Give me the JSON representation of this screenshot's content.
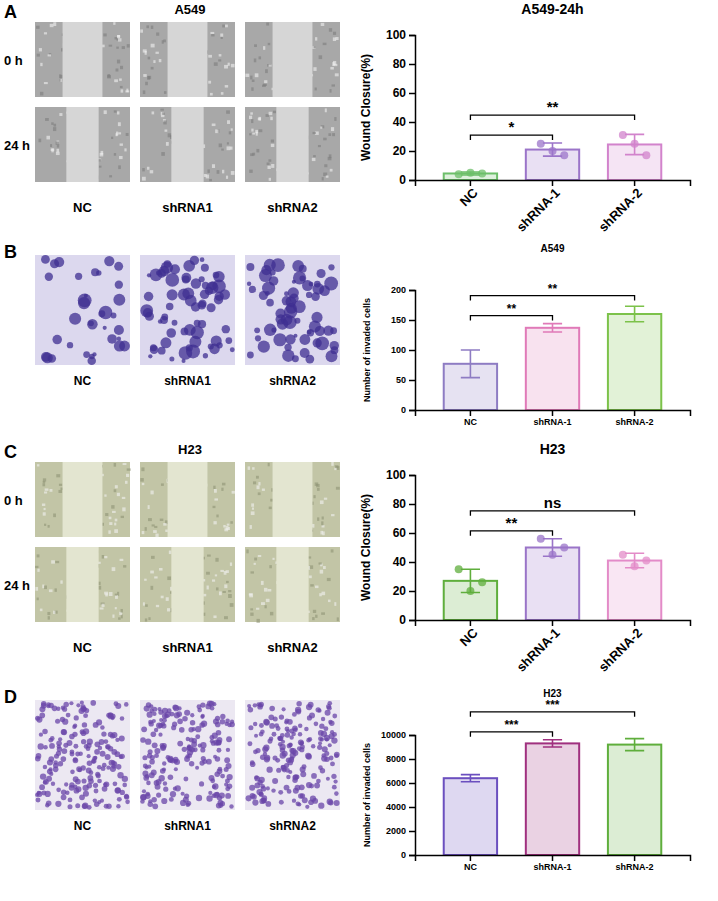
{
  "chart_data": [
    {
      "type": "bar",
      "title": "A549-24h",
      "y_label": "Wound Closure(%)",
      "categories": [
        "NC",
        "shRNA-1",
        "shRNA-2"
      ],
      "values": [
        4.5,
        21,
        24.5
      ],
      "errors": [
        1,
        4.5,
        7
      ],
      "points": [
        [
          4,
          5,
          4.5
        ],
        [
          25,
          20,
          17
        ],
        [
          31,
          25,
          17
        ]
      ],
      "colors": [
        "#6dbf6a",
        "#9b74c9",
        "#d283cc"
      ],
      "ylim": [
        0,
        100
      ],
      "yticks": [
        0,
        20,
        40,
        60,
        80,
        100
      ],
      "grid": false,
      "annotations": [
        {
          "text": "*",
          "between": [
            "NC",
            "shRNA-1"
          ]
        },
        {
          "text": "**",
          "between": [
            "NC",
            "shRNA-2"
          ]
        }
      ]
    },
    {
      "type": "bar",
      "title": "A549",
      "y_label": "Number of invaded cells",
      "categories": [
        "NC",
        "shRNA-1",
        "shRNA-2"
      ],
      "values": [
        77,
        137,
        160
      ],
      "errors": [
        23,
        7,
        13
      ],
      "colors": [
        "#8e7cc3",
        "#e07ab8",
        "#7cc24a"
      ],
      "ylim": [
        0,
        200
      ],
      "yticks": [
        0,
        50,
        100,
        150,
        200
      ],
      "grid": false,
      "annotations": [
        {
          "text": "**",
          "between": [
            "NC",
            "shRNA-1"
          ]
        },
        {
          "text": "**",
          "between": [
            "NC",
            "shRNA-2"
          ]
        }
      ]
    },
    {
      "type": "bar",
      "title": "H23",
      "y_label": "Wound Closure(%)",
      "categories": [
        "NC",
        "shRNA-1",
        "shRNA-2"
      ],
      "values": [
        27,
        50,
        41
      ],
      "errors": [
        8,
        6,
        5
      ],
      "points": [
        [
          35,
          20,
          26
        ],
        [
          56,
          45,
          50
        ],
        [
          45,
          37,
          41
        ]
      ],
      "colors": [
        "#5fae3c",
        "#9a74c8",
        "#e38bc8"
      ],
      "ylim": [
        0,
        100
      ],
      "yticks": [
        0,
        20,
        40,
        60,
        80,
        100
      ],
      "grid": false,
      "annotations": [
        {
          "text": "**",
          "between": [
            "NC",
            "shRNA-1"
          ]
        },
        {
          "text": "ns",
          "between": [
            "NC",
            "shRNA-2"
          ]
        }
      ]
    },
    {
      "type": "bar",
      "title": "H23",
      "y_label": "Number of invaded cells",
      "categories": [
        "NC",
        "shRNA-1",
        "shRNA-2"
      ],
      "values": [
        6400,
        9300,
        9200
      ],
      "errors": [
        300,
        300,
        500
      ],
      "colors": [
        "#6b4fbf",
        "#a0307f",
        "#5fae3c"
      ],
      "ylim": [
        0,
        10000
      ],
      "yticks": [
        0,
        2000,
        4000,
        6000,
        8000,
        10000
      ],
      "grid": false,
      "annotations": [
        {
          "text": "***",
          "between": [
            "NC",
            "shRNA-1"
          ]
        },
        {
          "text": "***",
          "between": [
            "NC",
            "shRNA-2"
          ]
        }
      ]
    }
  ],
  "panels": [
    {
      "letter": "A",
      "title": "A549",
      "row_labels": [
        "0 h",
        "24 h"
      ],
      "image_labels": [
        "NC",
        "shRNA1",
        "shRNA2"
      ]
    },
    {
      "letter": "B",
      "image_labels": [
        "NC",
        "shRNA1",
        "shRNA2"
      ]
    },
    {
      "letter": "C",
      "title": "H23",
      "row_labels": [
        "0 h",
        "24 h"
      ],
      "image_labels": [
        "NC",
        "shRNA1",
        "shRNA2"
      ]
    },
    {
      "letter": "D",
      "image_labels": [
        "NC",
        "shRNA1",
        "shRNA2"
      ]
    }
  ]
}
